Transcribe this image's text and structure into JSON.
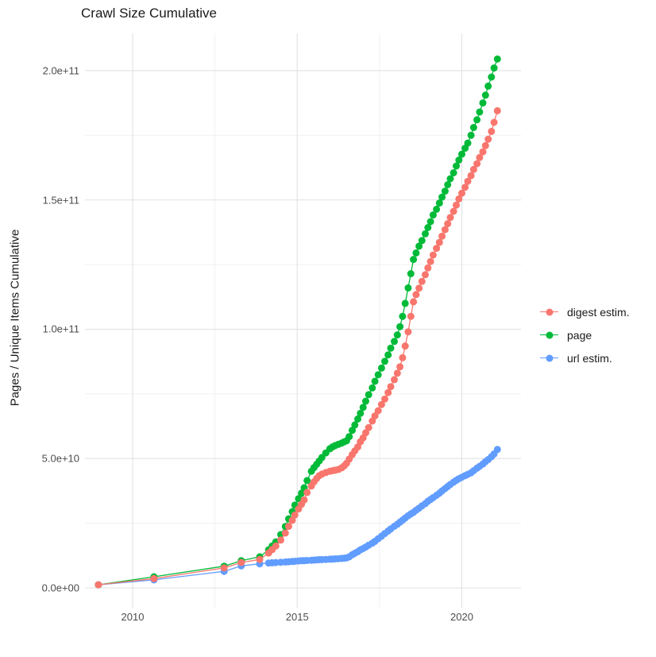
{
  "title": "Crawl Size Cumulative",
  "axes": {
    "y_title": "Pages / Unique Items Cumulative",
    "y_tick_labels": [
      "0.0e+00",
      "5.0e+10",
      "1.0e+11",
      "1.5e+11",
      "2.0e+11"
    ],
    "y_tick_values_e9": [
      0,
      50,
      100,
      150,
      200
    ],
    "x_tick_labels": [
      "2010",
      "2015",
      "2020"
    ],
    "x_tick_values": [
      2010,
      2015,
      2020
    ]
  },
  "legend": {
    "entries": [
      {
        "label": "digest estim.",
        "color": "#F8766D"
      },
      {
        "label": "page",
        "color": "#00BA38"
      },
      {
        "label": "url estim.",
        "color": "#619CFF"
      }
    ]
  },
  "chart_data": {
    "type": "line",
    "title": "Crawl Size Cumulative",
    "xlabel": "",
    "ylabel": "Pages / Unique Items Cumulative",
    "legend_position": "right",
    "grid": "major+minor",
    "xlim": [
      2008.3,
      2021.8
    ],
    "ylim_e9": [
      -5,
      215
    ],
    "x_years": [
      2008.96,
      2010.65,
      2012.78,
      2013.3,
      2013.86,
      2014.13,
      2014.24,
      2014.35,
      2014.5,
      2014.64,
      2014.74,
      2014.85,
      2014.93,
      2015.04,
      2015.13,
      2015.21,
      2015.3,
      2015.43,
      2015.51,
      2015.59,
      2015.67,
      2015.75,
      2015.87,
      2015.99,
      2016.07,
      2016.15,
      2016.25,
      2016.35,
      2016.43,
      2016.5,
      2016.58,
      2016.67,
      2016.75,
      2016.84,
      2016.92,
      2017.0,
      2017.08,
      2017.17,
      2017.28,
      2017.36,
      2017.46,
      2017.56,
      2017.66,
      2017.76,
      2017.84,
      2017.95,
      2018.04,
      2018.12,
      2018.2,
      2018.28,
      2018.37,
      2018.45,
      2018.53,
      2018.61,
      2018.7,
      2018.79,
      2018.89,
      2018.97,
      2019.05,
      2019.13,
      2019.23,
      2019.32,
      2019.4,
      2019.49,
      2019.57,
      2019.65,
      2019.75,
      2019.83,
      2019.91,
      2020.0,
      2020.1,
      2020.18,
      2020.28,
      2020.36,
      2020.46,
      2020.54,
      2020.64,
      2020.72,
      2020.8,
      2020.9,
      2020.98,
      2021.08
    ],
    "series": [
      {
        "name": "page",
        "color": "#00BA38",
        "values_e9": [
          1.2,
          4.3,
          8.4,
          10.5,
          12.0,
          14.7,
          16.2,
          17.8,
          20.6,
          23.7,
          26.7,
          29.5,
          32.0,
          34.5,
          36.6,
          38.7,
          41.5,
          45.1,
          46.5,
          47.8,
          49.1,
          50.4,
          52.2,
          53.8,
          54.5,
          55.0,
          55.5,
          56.0,
          56.5,
          56.9,
          58.5,
          60.9,
          63.0,
          65.3,
          67.5,
          69.8,
          72.2,
          74.7,
          77.3,
          79.9,
          82.4,
          85.0,
          87.6,
          90.1,
          92.7,
          95.3,
          97.8,
          101.0,
          105.0,
          110.0,
          116.0,
          121.5,
          127.0,
          129.5,
          132.1,
          134.3,
          136.9,
          139.3,
          141.6,
          144.2,
          146.4,
          148.8,
          151.1,
          153.4,
          155.9,
          158.2,
          160.5,
          163.1,
          165.4,
          167.7,
          170.0,
          172.0,
          175.0,
          178.0,
          181.0,
          184.0,
          187.5,
          190.5,
          194.0,
          197.5,
          201.0,
          204.5
        ]
      },
      {
        "name": "url estim.",
        "color": "#619CFF",
        "values_e9": [
          1.2,
          3.1,
          6.4,
          8.5,
          9.3,
          9.6,
          9.7,
          9.8,
          9.9,
          10.0,
          10.1,
          10.2,
          10.3,
          10.4,
          10.5,
          10.55,
          10.6,
          10.7,
          10.75,
          10.8,
          10.9,
          10.95,
          11.0,
          11.1,
          11.15,
          11.2,
          11.3,
          11.4,
          11.5,
          11.6,
          12.0,
          12.8,
          13.4,
          14.0,
          14.7,
          15.2,
          15.8,
          16.5,
          17.3,
          18.0,
          19.0,
          20.0,
          21.0,
          22.0,
          22.8,
          23.8,
          24.6,
          25.4,
          26.2,
          27.0,
          27.9,
          28.6,
          29.2,
          30.0,
          30.8,
          31.7,
          32.6,
          33.5,
          34.2,
          34.9,
          35.8,
          36.6,
          37.5,
          38.4,
          39.2,
          40.0,
          40.9,
          41.6,
          42.2,
          42.8,
          43.4,
          43.9,
          44.5,
          45.3,
          46.3,
          47.0,
          47.9,
          48.8,
          49.6,
          50.7,
          51.8,
          53.5
        ]
      },
      {
        "name": "digest estim.",
        "color": "#F8766D",
        "values_e9": [
          1.2,
          3.6,
          7.7,
          9.8,
          11.0,
          13.5,
          14.8,
          16.2,
          18.5,
          21.2,
          23.8,
          26.1,
          28.2,
          30.5,
          32.3,
          34.0,
          36.9,
          39.4,
          41.0,
          42.3,
          43.4,
          44.0,
          44.6,
          45.1,
          45.3,
          45.5,
          45.8,
          46.4,
          47.2,
          48.2,
          49.8,
          51.5,
          53.0,
          54.5,
          56.5,
          58.0,
          60.0,
          62.0,
          64.5,
          66.5,
          68.5,
          70.9,
          73.0,
          75.5,
          77.8,
          80.5,
          83.0,
          85.5,
          89.0,
          93.5,
          99.0,
          105.0,
          110.6,
          113.4,
          115.9,
          118.5,
          121.1,
          123.7,
          126.2,
          128.7,
          131.3,
          133.6,
          136.0,
          138.5,
          140.8,
          143.2,
          145.6,
          148.0,
          150.4,
          152.6,
          154.9,
          157.2,
          159.4,
          161.8,
          164.0,
          166.4,
          168.6,
          171.0,
          173.5,
          176.5,
          180.0,
          184.5
        ]
      }
    ]
  }
}
